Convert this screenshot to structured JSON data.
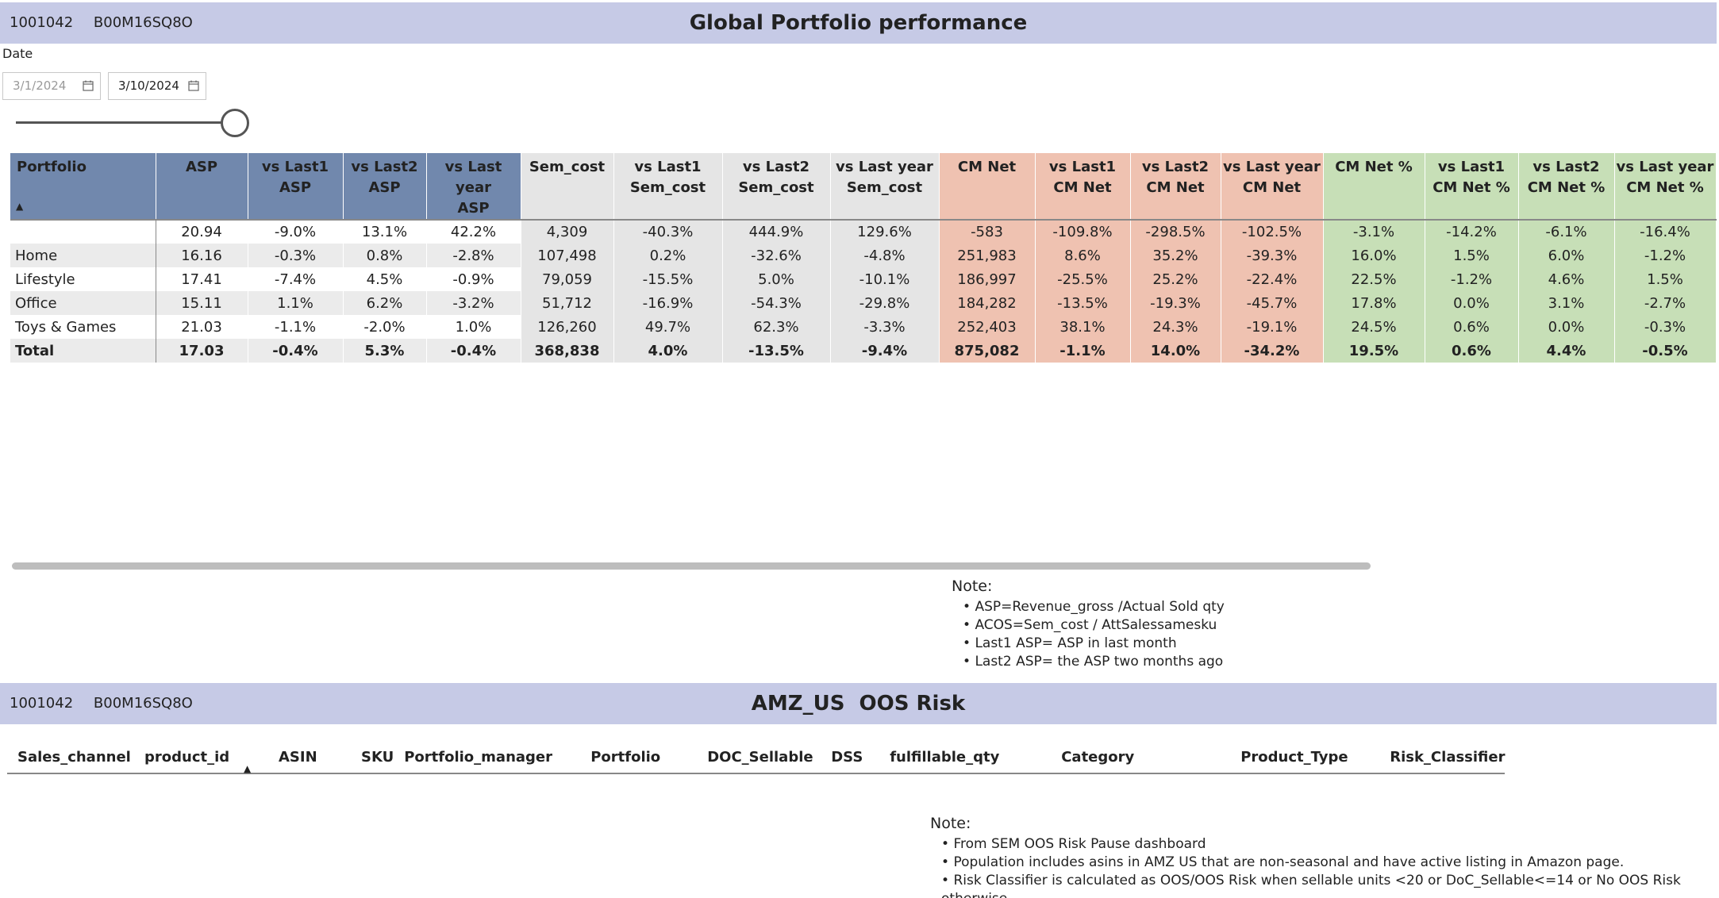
{
  "header1": {
    "id1": "1001042",
    "id2": "B00M16SQ8O",
    "title": "Global Portfolio performance"
  },
  "date_filter": {
    "label": "Date",
    "start": "3/1/2024",
    "end": "3/10/2024"
  },
  "perf_table": {
    "columns": {
      "portfolio": "Portfolio",
      "asp": "ASP",
      "vs_last1_asp": [
        "vs Last1",
        "ASP"
      ],
      "vs_last2_asp": [
        "vs Last2",
        "ASP"
      ],
      "vs_ly_asp": [
        "vs Last year",
        "ASP"
      ],
      "sem_cost": "Sem_cost",
      "vs_last1_sem": [
        "vs Last1",
        "Sem_cost"
      ],
      "vs_last2_sem": [
        "vs Last2",
        "Sem_cost"
      ],
      "vs_ly_sem": [
        "vs Last year",
        "Sem_cost"
      ],
      "cm_net": "CM Net",
      "vs_last1_cm": [
        "vs Last1",
        "CM Net"
      ],
      "vs_last2_cm": [
        "vs Last2",
        "CM Net"
      ],
      "vs_ly_cm": [
        "vs Last year",
        "CM Net"
      ],
      "cm_net_pct": "CM Net %",
      "vs_last1_pct": [
        "vs Last1",
        "CM Net %"
      ],
      "vs_last2_pct": [
        "vs Last2",
        "CM Net %"
      ],
      "vs_ly_pct": [
        "vs Last year",
        "CM Net %"
      ]
    },
    "rows": [
      [
        "",
        "20.94",
        "-9.0%",
        "13.1%",
        "42.2%",
        "4,309",
        "-40.3%",
        "444.9%",
        "129.6%",
        "-583",
        "-109.8%",
        "-298.5%",
        "-102.5%",
        "-3.1%",
        "-14.2%",
        "-6.1%",
        "-16.4%"
      ],
      [
        "Home",
        "16.16",
        "-0.3%",
        "0.8%",
        "-2.8%",
        "107,498",
        "0.2%",
        "-32.6%",
        "-4.8%",
        "251,983",
        "8.6%",
        "35.2%",
        "-39.3%",
        "16.0%",
        "1.5%",
        "6.0%",
        "-1.2%"
      ],
      [
        "Lifestyle",
        "17.41",
        "-7.4%",
        "4.5%",
        "-0.9%",
        "79,059",
        "-15.5%",
        "5.0%",
        "-10.1%",
        "186,997",
        "-25.5%",
        "25.2%",
        "-22.4%",
        "22.5%",
        "-1.2%",
        "4.6%",
        "1.5%"
      ],
      [
        "Office",
        "15.11",
        "1.1%",
        "6.2%",
        "-3.2%",
        "51,712",
        "-16.9%",
        "-54.3%",
        "-29.8%",
        "184,282",
        "-13.5%",
        "-19.3%",
        "-45.7%",
        "17.8%",
        "0.0%",
        "3.1%",
        "-2.7%"
      ],
      [
        "Toys & Games",
        "21.03",
        "-1.1%",
        "-2.0%",
        "1.0%",
        "126,260",
        "49.7%",
        "62.3%",
        "-3.3%",
        "252,403",
        "38.1%",
        "24.3%",
        "-19.1%",
        "24.5%",
        "0.6%",
        "0.0%",
        "-0.3%"
      ],
      [
        "Total",
        "17.03",
        "-0.4%",
        "5.3%",
        "-0.4%",
        "368,838",
        "4.0%",
        "-13.5%",
        "-9.4%",
        "875,082",
        "-1.1%",
        "14.0%",
        "-34.2%",
        "19.5%",
        "0.6%",
        "4.4%",
        "-0.5%"
      ]
    ]
  },
  "note1": {
    "title": "Note:",
    "items": [
      "ASP=Revenue_gross /Actual Sold qty",
      "ACOS=Sem_cost / AttSalessamesku",
      "Last1 ASP= ASP in last month",
      "Last2 ASP= the ASP two months ago"
    ]
  },
  "header2": {
    "id1": "1001042",
    "id2": "B00M16SQ8O",
    "title": "AMZ_US  OOS Risk"
  },
  "oos_table": {
    "columns": [
      "Sales_channel",
      "product_id",
      "ASIN",
      "SKU",
      "Portfolio_manager",
      "Portfolio",
      "DOC_Sellable",
      "DSS",
      "fulfillable_qty",
      "Category",
      "Product_Type",
      "Risk_Classifier"
    ]
  },
  "note2": {
    "title": "Note:",
    "items": [
      "From SEM OOS Risk Pause dashboard",
      "Population includes asins in AMZ US that are non-seasonal and have active listing in Amazon page.",
      "Risk Classifier is calculated as OOS/OOS Risk when sellable units <20 or DoC_Sellable<=14 or No OOS Risk otherwise."
    ]
  },
  "colors": {
    "title_bar": "#c6cae6",
    "asp_header": "#7188ad",
    "sem_bg": "#e5e5e5",
    "cm_bg": "#efc2b1",
    "pct_bg": "#c7dfb7"
  }
}
